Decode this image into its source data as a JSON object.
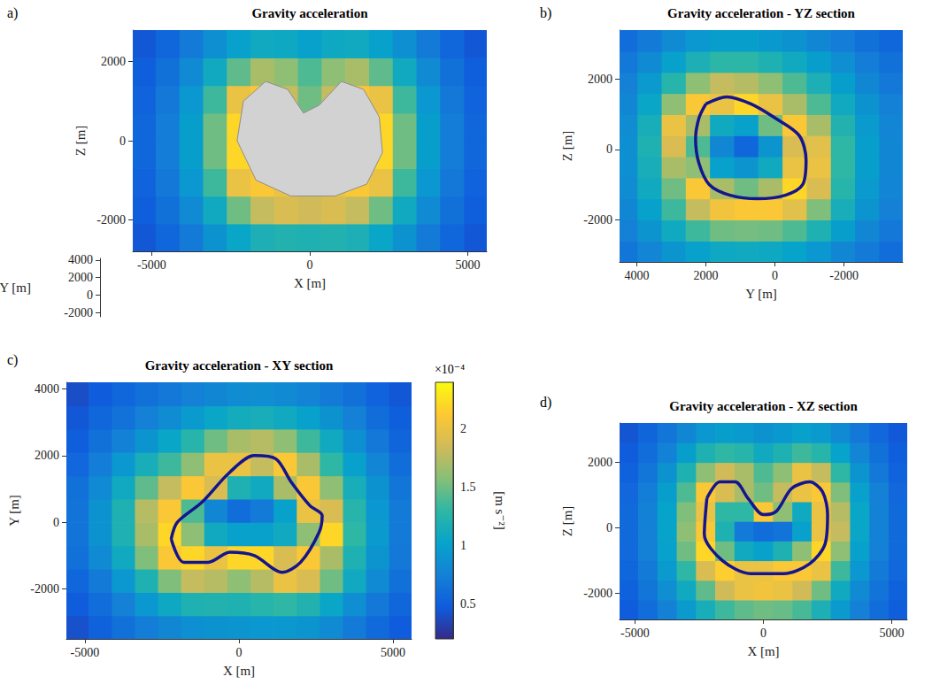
{
  "chart_data": [
    {
      "type": "heatmap",
      "panel_label": "a)",
      "title": "Gravity acceleration",
      "xlabel": "X [m]",
      "ylabel": "Z [m]",
      "xlim": [
        -5600,
        5600
      ],
      "xticks": [
        -5000,
        0,
        5000
      ],
      "ylim": [
        -2800,
        2800
      ],
      "yticks": [
        -2000,
        0,
        2000
      ],
      "depth_label": "Y [m]",
      "depth_lim": [
        -2500,
        4200
      ],
      "depth_ticks": [
        -2000,
        0,
        2000,
        4000
      ],
      "x": [
        -5250,
        -4500,
        -3750,
        -3000,
        -2250,
        -1500,
        -750,
        0,
        750,
        1500,
        2250,
        3000,
        3750,
        4500,
        5250
      ],
      "y": [
        -2450,
        -1750,
        -1050,
        -350,
        350,
        1050,
        1750,
        2450
      ],
      "cells": [
        [
          0.45,
          0.55,
          0.7,
          0.88,
          1.05,
          1.18,
          1.22,
          1.2,
          1.22,
          1.18,
          1.05,
          0.88,
          0.7,
          0.55,
          0.45
        ],
        [
          0.5,
          0.62,
          0.82,
          1.1,
          1.5,
          1.8,
          1.9,
          1.85,
          1.9,
          1.8,
          1.5,
          1.1,
          0.82,
          0.62,
          0.5
        ],
        [
          0.53,
          0.68,
          0.92,
          1.35,
          2.0,
          2.1,
          2.0,
          1.9,
          2.0,
          2.1,
          2.0,
          1.35,
          0.92,
          0.68,
          0.53
        ],
        [
          0.55,
          0.72,
          0.98,
          1.5,
          2.2,
          1.6,
          1.2,
          1.0,
          1.2,
          1.6,
          2.2,
          1.5,
          0.98,
          0.72,
          0.55
        ],
        [
          0.55,
          0.72,
          0.98,
          1.5,
          2.2,
          1.6,
          1.2,
          1.0,
          1.2,
          1.6,
          2.2,
          1.5,
          0.98,
          0.72,
          0.55
        ],
        [
          0.53,
          0.68,
          0.92,
          1.35,
          2.0,
          2.1,
          1.8,
          1.5,
          1.8,
          2.1,
          2.0,
          1.35,
          0.92,
          0.68,
          0.53
        ],
        [
          0.5,
          0.62,
          0.82,
          1.1,
          1.45,
          1.7,
          1.6,
          1.4,
          1.6,
          1.7,
          1.45,
          1.1,
          0.82,
          0.62,
          0.5
        ],
        [
          0.45,
          0.55,
          0.7,
          0.86,
          1.0,
          1.1,
          1.08,
          1.0,
          1.08,
          1.1,
          1.0,
          0.86,
          0.7,
          0.55,
          0.45
        ]
      ],
      "body": [
        [
          -2300,
          0
        ],
        [
          -2100,
          1000
        ],
        [
          -1400,
          1500
        ],
        [
          -700,
          1300
        ],
        [
          -200,
          700
        ],
        [
          300,
          900
        ],
        [
          1000,
          1500
        ],
        [
          1700,
          1300
        ],
        [
          2200,
          600
        ],
        [
          2300,
          -300
        ],
        [
          1800,
          -1100
        ],
        [
          800,
          -1400
        ],
        [
          -600,
          -1400
        ],
        [
          -1700,
          -1000
        ],
        [
          -2300,
          0
        ]
      ]
    },
    {
      "type": "heatmap",
      "panel_label": "b)",
      "title": "Gravity acceleration - YZ section",
      "xlabel": "Y [m]",
      "ylabel": "Z [m]",
      "xlim": [
        4500,
        -3700
      ],
      "xticks": [
        4000,
        2000,
        0,
        -2000
      ],
      "ylim": [
        -3200,
        3400
      ],
      "yticks": [
        -2000,
        0,
        2000
      ],
      "x": [
        -3350,
        -2650,
        -1950,
        -1250,
        -550,
        150,
        850,
        1550,
        2250,
        2950,
        3650,
        4350
      ],
      "y": [
        -2900,
        -2300,
        -1700,
        -1100,
        -500,
        100,
        700,
        1300,
        1900,
        2500,
        3100
      ],
      "cells": [
        [
          0.6,
          0.7,
          0.8,
          0.92,
          1.02,
          1.08,
          1.1,
          1.08,
          1.0,
          0.9,
          0.78,
          0.66
        ],
        [
          0.68,
          0.8,
          0.98,
          1.2,
          1.4,
          1.5,
          1.52,
          1.5,
          1.35,
          1.1,
          0.9,
          0.74
        ],
        [
          0.74,
          0.9,
          1.15,
          1.55,
          1.95,
          2.1,
          2.1,
          2.05,
          1.8,
          1.35,
          1.0,
          0.8
        ],
        [
          0.78,
          0.95,
          1.25,
          1.9,
          2.2,
          1.7,
          1.5,
          1.7,
          2.1,
          1.5,
          1.1,
          0.84
        ],
        [
          0.8,
          0.98,
          1.3,
          2.0,
          2.0,
          1.1,
          0.9,
          1.0,
          1.6,
          1.7,
          1.15,
          0.86
        ],
        [
          0.8,
          0.98,
          1.3,
          1.95,
          1.9,
          0.9,
          0.55,
          0.8,
          1.4,
          1.9,
          1.2,
          0.86
        ],
        [
          0.78,
          0.95,
          1.22,
          1.7,
          2.1,
          1.5,
          1.0,
          1.1,
          1.7,
          2.0,
          1.15,
          0.84
        ],
        [
          0.74,
          0.88,
          1.1,
          1.4,
          1.7,
          2.0,
          2.2,
          2.0,
          2.1,
          1.6,
          1.05,
          0.8
        ],
        [
          0.68,
          0.8,
          0.98,
          1.18,
          1.4,
          1.6,
          1.75,
          1.8,
          1.6,
          1.25,
          0.95,
          0.74
        ],
        [
          0.62,
          0.72,
          0.85,
          0.98,
          1.1,
          1.2,
          1.28,
          1.28,
          1.18,
          1.0,
          0.82,
          0.68
        ],
        [
          0.55,
          0.63,
          0.72,
          0.8,
          0.88,
          0.94,
          0.98,
          0.98,
          0.92,
          0.82,
          0.7,
          0.6
        ]
      ],
      "outline": [
        [
          2000,
          1300
        ],
        [
          1400,
          1500
        ],
        [
          700,
          1300
        ],
        [
          0,
          900
        ],
        [
          -700,
          400
        ],
        [
          -900,
          -300
        ],
        [
          -800,
          -1000
        ],
        [
          -300,
          -1300
        ],
        [
          500,
          -1400
        ],
        [
          1300,
          -1300
        ],
        [
          1900,
          -1000
        ],
        [
          2200,
          -400
        ],
        [
          2300,
          300
        ],
        [
          2200,
          900
        ],
        [
          2000,
          1300
        ]
      ]
    },
    {
      "type": "heatmap",
      "panel_label": "c)",
      "title": "Gravity acceleration - XY section",
      "xlabel": "X [m]",
      "ylabel": "Y [m]",
      "xlim": [
        -5600,
        5600
      ],
      "xticks": [
        -5000,
        0,
        5000
      ],
      "ylim": [
        -3500,
        4200
      ],
      "yticks": [
        -2000,
        0,
        2000,
        4000
      ],
      "x": [
        -5250,
        -4500,
        -3750,
        -3000,
        -2250,
        -1500,
        -750,
        0,
        750,
        1500,
        2250,
        3000,
        3750,
        4500,
        5250
      ],
      "y": [
        -3150,
        -2450,
        -1750,
        -1050,
        -350,
        350,
        1050,
        1750,
        2450,
        3150,
        3850
      ],
      "cells": [
        [
          0.42,
          0.52,
          0.62,
          0.72,
          0.8,
          0.86,
          0.88,
          0.9,
          0.92,
          0.93,
          0.9,
          0.82,
          0.7,
          0.58,
          0.48
        ],
        [
          0.48,
          0.6,
          0.75,
          0.92,
          1.08,
          1.2,
          1.22,
          1.2,
          1.25,
          1.3,
          1.22,
          1.05,
          0.85,
          0.68,
          0.55
        ],
        [
          0.55,
          0.7,
          0.92,
          1.2,
          1.55,
          1.8,
          1.75,
          1.6,
          1.75,
          2.0,
          1.9,
          1.5,
          1.1,
          0.82,
          0.62
        ],
        [
          0.62,
          0.82,
          1.1,
          1.55,
          2.1,
          2.2,
          2.0,
          2.2,
          2.2,
          1.9,
          2.1,
          1.7,
          1.2,
          0.9,
          0.68
        ],
        [
          0.65,
          0.88,
          1.2,
          1.7,
          2.2,
          1.6,
          1.1,
          1.0,
          1.0,
          1.1,
          1.6,
          2.2,
          1.3,
          0.95,
          0.7
        ],
        [
          0.65,
          0.88,
          1.2,
          1.75,
          2.1,
          1.4,
          0.8,
          0.6,
          0.7,
          1.0,
          2.0,
          1.9,
          1.25,
          0.92,
          0.7
        ],
        [
          0.62,
          0.82,
          1.1,
          1.45,
          1.8,
          2.1,
          1.9,
          1.2,
          1.1,
          1.7,
          2.1,
          1.6,
          1.15,
          0.88,
          0.66
        ],
        [
          0.56,
          0.72,
          0.92,
          1.15,
          1.35,
          1.6,
          2.0,
          2.0,
          1.8,
          2.1,
          1.7,
          1.3,
          1.0,
          0.78,
          0.6
        ],
        [
          0.5,
          0.62,
          0.76,
          0.9,
          1.05,
          1.25,
          1.5,
          1.7,
          1.75,
          1.6,
          1.35,
          1.1,
          0.86,
          0.68,
          0.54
        ],
        [
          0.45,
          0.55,
          0.64,
          0.74,
          0.84,
          0.95,
          1.05,
          1.12,
          1.15,
          1.1,
          1.0,
          0.88,
          0.74,
          0.6,
          0.5
        ],
        [
          0.4,
          0.48,
          0.55,
          0.62,
          0.68,
          0.74,
          0.8,
          0.84,
          0.85,
          0.82,
          0.77,
          0.7,
          0.62,
          0.53,
          0.45
        ]
      ],
      "outline": [
        [
          -2200,
          -500
        ],
        [
          -1800,
          -1200
        ],
        [
          -1000,
          -1200
        ],
        [
          -300,
          -900
        ],
        [
          500,
          -1000
        ],
        [
          1400,
          -1500
        ],
        [
          2000,
          -1200
        ],
        [
          2600,
          -300
        ],
        [
          2700,
          200
        ],
        [
          2300,
          500
        ],
        [
          1700,
          1200
        ],
        [
          1200,
          1900
        ],
        [
          500,
          2000
        ],
        [
          -300,
          1500
        ],
        [
          -1200,
          600
        ],
        [
          -2000,
          0
        ],
        [
          -2200,
          -500
        ]
      ],
      "colorbar": {
        "label": "[m s⁻²]",
        "scale_label": "×10⁻⁴",
        "lim": [
          0.2,
          2.4
        ],
        "ticks": [
          0.5,
          1,
          1.5,
          2
        ]
      }
    },
    {
      "type": "heatmap",
      "panel_label": "d)",
      "title": "Gravity acceleration - XZ section",
      "xlabel": "X [m]",
      "ylabel": "Z [m]",
      "xlim": [
        -5600,
        5600
      ],
      "xticks": [
        -5000,
        0,
        5000
      ],
      "ylim": [
        -2800,
        3200
      ],
      "yticks": [
        -2000,
        0,
        2000
      ],
      "x": [
        -5250,
        -4500,
        -3750,
        -3000,
        -2250,
        -1500,
        -750,
        0,
        750,
        1500,
        2250,
        3000,
        3750,
        4500,
        5250
      ],
      "y": [
        -2500,
        -1900,
        -1300,
        -700,
        -100,
        500,
        1100,
        1700,
        2300,
        2900
      ],
      "cells": [
        [
          0.48,
          0.6,
          0.75,
          0.95,
          1.15,
          1.35,
          1.45,
          1.5,
          1.48,
          1.38,
          1.18,
          0.95,
          0.75,
          0.6,
          0.5
        ],
        [
          0.52,
          0.66,
          0.85,
          1.1,
          1.45,
          1.85,
          2.0,
          2.05,
          2.0,
          1.85,
          1.5,
          1.1,
          0.82,
          0.65,
          0.52
        ],
        [
          0.55,
          0.7,
          0.95,
          1.3,
          1.9,
          2.15,
          2.0,
          2.0,
          2.1,
          2.1,
          2.0,
          1.35,
          0.92,
          0.7,
          0.56
        ],
        [
          0.57,
          0.74,
          1.0,
          1.5,
          2.2,
          1.5,
          1.1,
          1.0,
          1.2,
          1.6,
          2.2,
          1.6,
          1.0,
          0.74,
          0.58
        ],
        [
          0.58,
          0.76,
          1.02,
          1.6,
          2.1,
          1.2,
          0.7,
          0.6,
          0.65,
          1.0,
          2.0,
          1.8,
          1.05,
          0.76,
          0.58
        ],
        [
          0.58,
          0.76,
          1.02,
          1.55,
          2.0,
          1.3,
          1.3,
          2.1,
          1.6,
          1.1,
          2.0,
          1.75,
          1.05,
          0.76,
          0.58
        ],
        [
          0.56,
          0.72,
          0.98,
          1.4,
          2.1,
          1.9,
          1.7,
          1.5,
          1.8,
          2.0,
          2.1,
          1.55,
          1.0,
          0.74,
          0.56
        ],
        [
          0.52,
          0.66,
          0.88,
          1.2,
          1.6,
          1.85,
          1.7,
          1.4,
          1.6,
          2.0,
          1.8,
          1.3,
          0.9,
          0.68,
          0.53
        ],
        [
          0.48,
          0.6,
          0.76,
          0.98,
          1.2,
          1.3,
          1.25,
          1.1,
          1.2,
          1.35,
          1.25,
          1.02,
          0.78,
          0.62,
          0.5
        ],
        [
          0.44,
          0.54,
          0.66,
          0.8,
          0.92,
          0.98,
          0.95,
          0.88,
          0.94,
          1.0,
          0.95,
          0.82,
          0.68,
          0.56,
          0.46
        ]
      ],
      "outline": [
        [
          -2200,
          900
        ],
        [
          -1700,
          1400
        ],
        [
          -1100,
          1400
        ],
        [
          -600,
          900
        ],
        [
          0,
          400
        ],
        [
          500,
          500
        ],
        [
          1100,
          1200
        ],
        [
          1800,
          1400
        ],
        [
          2300,
          1100
        ],
        [
          2500,
          400
        ],
        [
          2400,
          -500
        ],
        [
          1800,
          -1100
        ],
        [
          800,
          -1400
        ],
        [
          -500,
          -1400
        ],
        [
          -1600,
          -1000
        ],
        [
          -2300,
          -200
        ],
        [
          -2200,
          900
        ]
      ]
    }
  ]
}
